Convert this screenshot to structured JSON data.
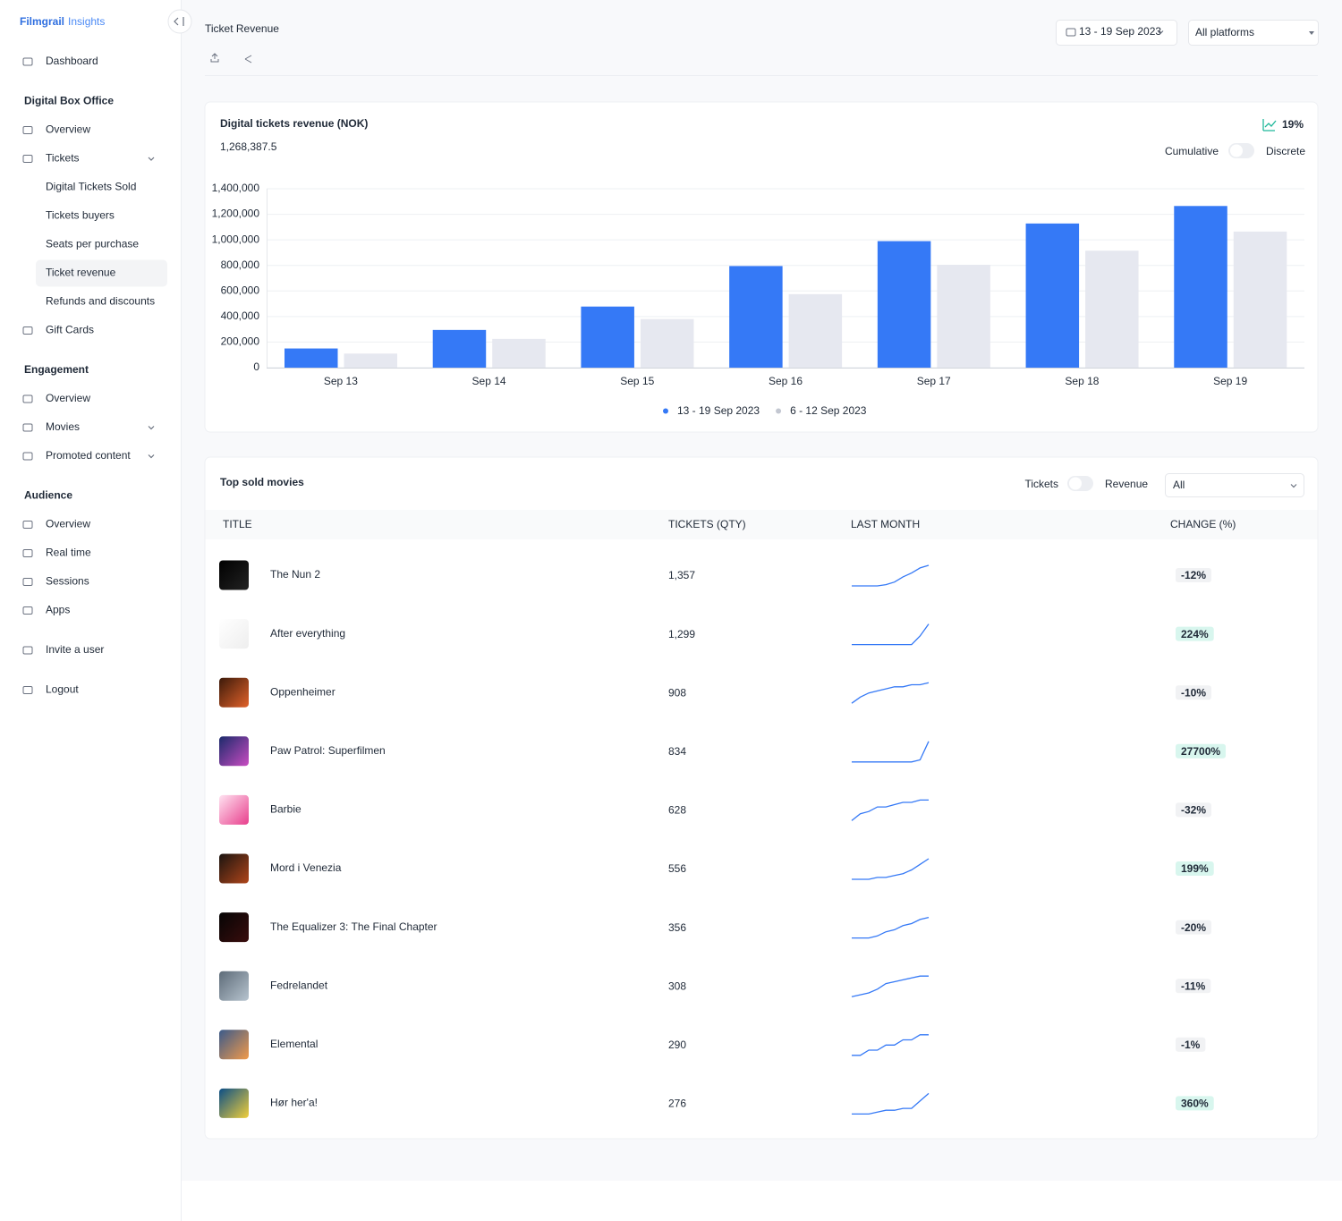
{
  "sidebar": {
    "brand": {
      "name": "Filmgrail",
      "product": "Insights"
    },
    "dashboard": "Dashboard",
    "sections": [
      {
        "title": "Digital Box Office",
        "items": [
          {
            "label": "Overview"
          },
          {
            "label": "Tickets",
            "children": [
              {
                "label": "Digital Tickets Sold"
              },
              {
                "label": "Tickets buyers"
              },
              {
                "label": "Seats per purchase"
              },
              {
                "label": "Ticket revenue",
                "active": true
              },
              {
                "label": "Refunds and discounts"
              }
            ]
          },
          {
            "label": "Gift Cards"
          }
        ]
      },
      {
        "title": "Engagement",
        "items": [
          {
            "label": "Overview"
          },
          {
            "label": "Movies",
            "expandable": true
          },
          {
            "label": "Promoted content",
            "expandable": true
          }
        ]
      },
      {
        "title": "Audience",
        "items": [
          {
            "label": "Overview"
          },
          {
            "label": "Real time"
          },
          {
            "label": "Sessions"
          },
          {
            "label": "Apps"
          }
        ]
      }
    ],
    "footer": [
      "Invite a user",
      "Logout"
    ]
  },
  "header": {
    "title": "Ticket Revenue",
    "date_range": "13 - 19 Sep 2023",
    "platform": "All platforms"
  },
  "chart_data": {
    "type": "bar",
    "title": "Digital tickets revenue (NOK)",
    "total": "1,268,387.5",
    "change": "19%",
    "toggle": [
      "Cumulative",
      "Discrete"
    ],
    "categories": [
      "Sep 13",
      "Sep 14",
      "Sep 15",
      "Sep 16",
      "Sep 17",
      "Sep 18",
      "Sep 19"
    ],
    "series": [
      {
        "name": "13 - 19 Sep 2023",
        "color": "#3579f6",
        "values": [
          150000,
          295000,
          478000,
          795000,
          990000,
          1128000,
          1265000
        ]
      },
      {
        "name": "6 - 12 Sep 2023",
        "color": "#e6e8f0",
        "values": [
          110000,
          225000,
          380000,
          575000,
          805000,
          915000,
          1065000
        ]
      }
    ],
    "ylim": [
      0,
      1400000
    ],
    "yticks": [
      0,
      {
        "value": 200000,
        "label": "200,000"
      },
      {
        "value": 400000,
        "label": "400,000"
      },
      {
        "value": 600000,
        "label": "600,000"
      },
      {
        "value": 800000,
        "label": "800,000"
      },
      {
        "value": 1000000,
        "label": "1,000,000"
      },
      {
        "value": 1200000,
        "label": "1,200,000"
      },
      {
        "value": 1400000,
        "label": "1,400,000"
      }
    ],
    "grid": true,
    "legend": "bottom"
  },
  "table": {
    "title": "Top sold movies",
    "toggle": [
      "Tickets",
      "Revenue"
    ],
    "filter": "All",
    "columns": [
      "TITLE",
      "TICKETS (QTY)",
      "LAST MONTH",
      "CHANGE (%)"
    ],
    "rows": [
      {
        "title": "The Nun 2",
        "tickets": "1,357",
        "change": "-12%",
        "sparkline": [
          2,
          2,
          2,
          2,
          3,
          5,
          9,
          12,
          16,
          18
        ]
      },
      {
        "title": "After everything",
        "tickets": "1,299",
        "change": "224%",
        "sparkline": [
          0,
          0,
          0,
          0,
          0,
          0,
          0,
          0,
          5,
          12
        ]
      },
      {
        "title": "Oppenheimer",
        "tickets": "908",
        "change": "-10%",
        "sparkline": [
          2,
          5,
          7,
          8,
          9,
          10,
          10,
          11,
          11,
          12
        ]
      },
      {
        "title": "Paw Patrol: Superfilmen",
        "tickets": "834",
        "change": "27700%",
        "sparkline": [
          0,
          0,
          0,
          0,
          0,
          0,
          0,
          0,
          1,
          10
        ]
      },
      {
        "title": "Barbie",
        "tickets": "628",
        "change": "-32%",
        "sparkline": [
          2,
          5,
          6,
          8,
          8,
          9,
          10,
          10,
          11,
          11
        ]
      },
      {
        "title": "Mord i Venezia",
        "tickets": "556",
        "change": "199%",
        "sparkline": [
          1,
          1,
          1,
          2,
          2,
          3,
          4,
          6,
          9,
          12
        ]
      },
      {
        "title": "The Equalizer 3: The Final Chapter",
        "tickets": "356",
        "change": "-20%",
        "sparkline": [
          1,
          1,
          1,
          2,
          4,
          5,
          7,
          8,
          10,
          11
        ]
      },
      {
        "title": "Fedrelandet",
        "tickets": "308",
        "change": "-11%",
        "sparkline": [
          1,
          2,
          3,
          5,
          8,
          9,
          10,
          11,
          12,
          12
        ]
      },
      {
        "title": "Elemental",
        "tickets": "290",
        "change": "-1%",
        "sparkline": [
          1,
          1,
          3,
          3,
          5,
          5,
          7,
          7,
          9,
          9
        ]
      },
      {
        "title": "Hør her'a!",
        "tickets": "276",
        "change": "360%",
        "sparkline": [
          1,
          1,
          1,
          2,
          3,
          3,
          4,
          4,
          8,
          12
        ]
      }
    ]
  }
}
